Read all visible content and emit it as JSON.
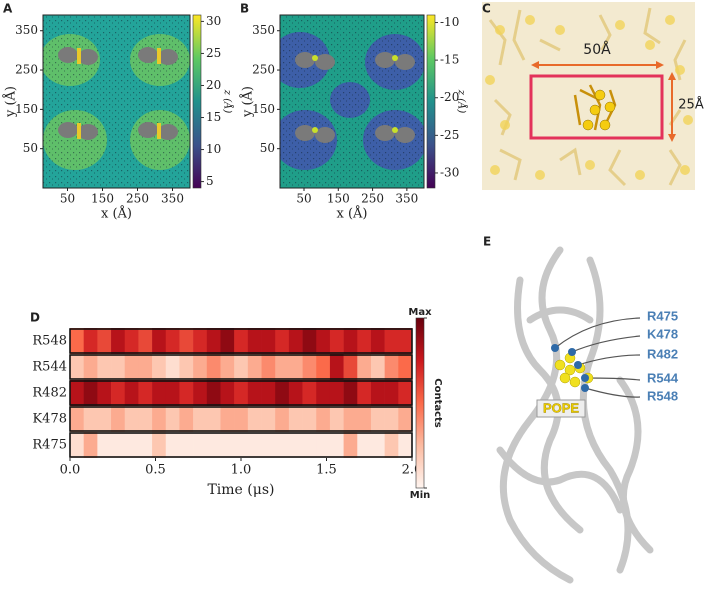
{
  "chart_data": [
    {
      "type": "heatmap",
      "label": "A",
      "xlabel": "x (Å)",
      "ylabel": "y (Å)",
      "colorbar_label": "z (Å)",
      "xlim": [
        -20,
        400
      ],
      "ylim": [
        -50,
        390
      ],
      "xticks": [
        50,
        150,
        250,
        350
      ],
      "yticks": [
        50,
        150,
        250,
        350
      ],
      "clim": [
        4,
        31
      ],
      "cticks": [
        5,
        10,
        15,
        20,
        25,
        30
      ],
      "colormap": "viridis"
    },
    {
      "type": "heatmap",
      "label": "B",
      "xlabel": "x (Å)",
      "ylabel": "y (Å)",
      "colorbar_label": "z (Å)",
      "xlim": [
        -20,
        400
      ],
      "ylim": [
        -50,
        390
      ],
      "xticks": [
        50,
        150,
        250,
        350
      ],
      "yticks": [
        50,
        150,
        250,
        350
      ],
      "clim": [
        -32,
        -9
      ],
      "cticks": [
        -30,
        -25,
        -20,
        -15,
        -10
      ],
      "colormap": "viridis"
    },
    {
      "type": "contact",
      "label": "D",
      "xlabel": "Time (μs)",
      "colorbar_label": "Contacts",
      "xlim": [
        0,
        2
      ],
      "xticks": [
        {
          "value": 0,
          "label": "0.0"
        },
        {
          "value": 0.5,
          "label": "0.5"
        },
        {
          "value": 1,
          "label": "1.0"
        },
        {
          "value": 1.5,
          "label": "1.5"
        },
        {
          "value": 2,
          "label": "2.0"
        }
      ],
      "clim": [
        0,
        1
      ],
      "cticks": [
        {
          "value": 0,
          "label": "Min"
        },
        {
          "value": 1,
          "label": "Max"
        }
      ],
      "x": [
        0,
        0.08,
        0.16,
        0.24,
        0.32,
        0.4,
        0.48,
        0.56,
        0.64,
        0.72,
        0.8,
        0.88,
        0.96,
        1.04,
        1.12,
        1.2,
        1.28,
        1.36,
        1.44,
        1.52,
        1.6,
        1.68,
        1.76,
        1.84,
        1.92
      ],
      "series": [
        {
          "name": "R548",
          "values": [
            0.5,
            0.7,
            0.6,
            0.8,
            0.7,
            0.6,
            0.8,
            0.7,
            0.6,
            0.7,
            0.8,
            0.9,
            0.7,
            0.8,
            0.8,
            0.7,
            0.8,
            0.9,
            0.8,
            0.7,
            0.8,
            0.7,
            0.8,
            0.7,
            0.7
          ]
        },
        {
          "name": "R544",
          "values": [
            0.2,
            0.3,
            0.2,
            0.2,
            0.3,
            0.3,
            0.2,
            0.1,
            0.2,
            0.3,
            0.4,
            0.3,
            0.2,
            0.3,
            0.4,
            0.3,
            0.3,
            0.4,
            0.5,
            0.8,
            0.6,
            0.3,
            0.2,
            0.4,
            0.5
          ]
        },
        {
          "name": "R482",
          "values": [
            0.8,
            0.9,
            0.8,
            0.7,
            0.8,
            0.7,
            0.8,
            0.8,
            0.7,
            0.8,
            0.9,
            0.8,
            0.7,
            0.8,
            0.8,
            0.9,
            0.8,
            0.7,
            0.8,
            0.8,
            0.9,
            0.7,
            0.8,
            0.8,
            0.7
          ]
        },
        {
          "name": "K478",
          "values": [
            0.3,
            0.2,
            0.2,
            0.3,
            0.2,
            0.2,
            0.3,
            0.2,
            0.3,
            0.2,
            0.2,
            0.3,
            0.3,
            0.2,
            0.2,
            0.3,
            0.2,
            0.2,
            0.3,
            0.2,
            0.3,
            0.3,
            0.2,
            0.2,
            0.3
          ]
        },
        {
          "name": "R475",
          "values": [
            0.1,
            0.3,
            0.05,
            0.05,
            0.05,
            0.05,
            0.2,
            0.05,
            0.05,
            0.05,
            0.05,
            0.05,
            0.05,
            0.05,
            0.05,
            0.05,
            0.05,
            0.05,
            0.05,
            0.05,
            0.3,
            0.05,
            0.05,
            0.2,
            0.05
          ]
        }
      ]
    }
  ],
  "panel_c": {
    "label": "C",
    "width_label": "50Å",
    "height_label": "25Å"
  },
  "panel_e": {
    "label": "E",
    "residues": [
      "R475",
      "K478",
      "R482",
      "R544",
      "R548"
    ],
    "lipid": "POPE"
  }
}
